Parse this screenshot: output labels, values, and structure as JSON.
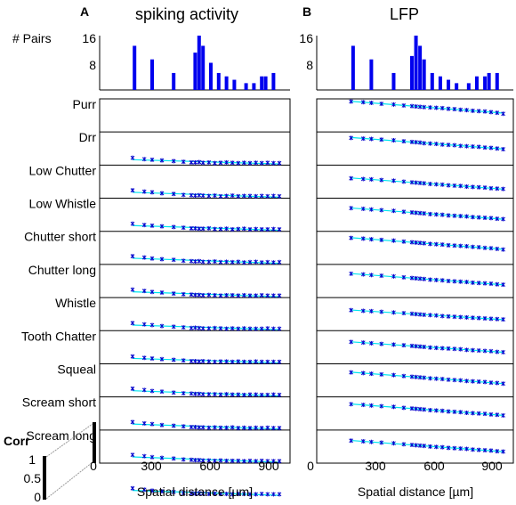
{
  "panels": [
    {
      "letter": "A",
      "title": "spiking activity",
      "xlabel": "Spatial distance [µm]"
    },
    {
      "letter": "B",
      "title": "LFP",
      "xlabel": "Spatial distance [µm]"
    }
  ],
  "pairs_label": "# Pairs",
  "corr_label": "Corr",
  "corr_ticks": [
    "1",
    "0.5",
    "0"
  ],
  "hist_ticks": [
    "16",
    "8"
  ],
  "x_tick_labels": [
    "0",
    "300",
    "600",
    "900"
  ],
  "colors": {
    "bars": "#0000ee",
    "markers": "#0000cc",
    "fit": "#00e5ee"
  },
  "chart_data": [
    {
      "type": "bar",
      "panel": "A",
      "title": "spiking activity",
      "xlabel": "Spatial distance [µm]",
      "ylabel": "# Pairs",
      "ylim": [
        0,
        16
      ],
      "x": [
        210,
        300,
        410,
        520,
        540,
        560,
        600,
        640,
        680,
        720,
        780,
        820,
        860,
        880,
        920
      ],
      "values": [
        13,
        9,
        5,
        11,
        16,
        13,
        8,
        5,
        4,
        3,
        2,
        2,
        4,
        4,
        5
      ]
    },
    {
      "type": "bar",
      "panel": "B",
      "title": "LFP",
      "xlabel": "Spatial distance [µm]",
      "ylabel": "# Pairs",
      "ylim": [
        0,
        16
      ],
      "x": [
        210,
        300,
        410,
        500,
        520,
        540,
        560,
        600,
        640,
        680,
        720,
        780,
        820,
        860,
        880,
        920
      ],
      "values": [
        13,
        9,
        5,
        10,
        16,
        13,
        9,
        5,
        4,
        3,
        2,
        2,
        4,
        4,
        5,
        5
      ]
    },
    {
      "type": "scatter",
      "panel": "A",
      "xlim": [
        0,
        1000
      ],
      "ylim_per_row": [
        0,
        1
      ],
      "x": [
        200,
        260,
        300,
        350,
        410,
        460,
        500,
        520,
        540,
        560,
        590,
        620,
        650,
        680,
        710,
        740,
        770,
        800,
        830,
        860,
        890,
        920,
        950
      ],
      "rows": [
        {
          "label": "Purr",
          "y": []
        },
        {
          "label": "Drr",
          "y": [
            0.22,
            0.18,
            0.16,
            0.14,
            0.12,
            0.1,
            0.08,
            0.08,
            0.09,
            0.07,
            0.08,
            0.06,
            0.07,
            0.08,
            0.07,
            0.06,
            0.07,
            0.06,
            0.07,
            0.06,
            0.07,
            0.06,
            0.06
          ]
        },
        {
          "label": "Low Chutter",
          "y": [
            0.24,
            0.2,
            0.18,
            0.15,
            0.13,
            0.1,
            0.09,
            0.08,
            0.09,
            0.08,
            0.07,
            0.08,
            0.06,
            0.07,
            0.08,
            0.06,
            0.07,
            0.07,
            0.06,
            0.07,
            0.06,
            0.07,
            0.06
          ]
        },
        {
          "label": "Low Whistle",
          "y": [
            0.23,
            0.19,
            0.17,
            0.15,
            0.13,
            0.11,
            0.09,
            0.09,
            0.08,
            0.08,
            0.09,
            0.07,
            0.07,
            0.08,
            0.06,
            0.07,
            0.08,
            0.06,
            0.07,
            0.06,
            0.06,
            0.07,
            0.06
          ]
        },
        {
          "label": "Chutter short",
          "y": [
            0.25,
            0.21,
            0.18,
            0.16,
            0.14,
            0.11,
            0.1,
            0.09,
            0.1,
            0.08,
            0.08,
            0.09,
            0.07,
            0.08,
            0.07,
            0.08,
            0.06,
            0.07,
            0.08,
            0.06,
            0.07,
            0.06,
            0.07
          ]
        },
        {
          "label": "Chutter long",
          "y": [
            0.24,
            0.2,
            0.17,
            0.15,
            0.12,
            0.1,
            0.09,
            0.08,
            0.08,
            0.07,
            0.08,
            0.07,
            0.06,
            0.07,
            0.07,
            0.06,
            0.07,
            0.06,
            0.06,
            0.07,
            0.06,
            0.06,
            0.06
          ]
        },
        {
          "label": "Whistle",
          "y": [
            0.23,
            0.19,
            0.17,
            0.14,
            0.12,
            0.1,
            0.08,
            0.09,
            0.08,
            0.07,
            0.07,
            0.08,
            0.07,
            0.06,
            0.07,
            0.06,
            0.07,
            0.06,
            0.06,
            0.06,
            0.07,
            0.06,
            0.06
          ]
        },
        {
          "label": "Tooth Chatter",
          "y": [
            0.22,
            0.18,
            0.16,
            0.14,
            0.12,
            0.1,
            0.08,
            0.08,
            0.07,
            0.08,
            0.07,
            0.06,
            0.07,
            0.07,
            0.06,
            0.07,
            0.06,
            0.06,
            0.07,
            0.06,
            0.06,
            0.06,
            0.06
          ]
        },
        {
          "label": "Squeal",
          "y": [
            0.25,
            0.21,
            0.18,
            0.16,
            0.13,
            0.11,
            0.1,
            0.09,
            0.09,
            0.08,
            0.08,
            0.08,
            0.07,
            0.08,
            0.07,
            0.07,
            0.06,
            0.07,
            0.07,
            0.06,
            0.06,
            0.07,
            0.06
          ]
        },
        {
          "label": "Scream short",
          "y": [
            0.24,
            0.2,
            0.18,
            0.15,
            0.13,
            0.11,
            0.09,
            0.09,
            0.08,
            0.08,
            0.07,
            0.08,
            0.07,
            0.07,
            0.08,
            0.06,
            0.07,
            0.06,
            0.07,
            0.06,
            0.07,
            0.06,
            0.06
          ]
        },
        {
          "label": "Scream long",
          "y": [
            0.25,
            0.21,
            0.18,
            0.16,
            0.14,
            0.11,
            0.1,
            0.09,
            0.09,
            0.08,
            0.08,
            0.07,
            0.08,
            0.07,
            0.07,
            0.07,
            0.06,
            0.07,
            0.06,
            0.07,
            0.06,
            0.06,
            0.06
          ]
        },
        {
          "label": "",
          "y": [
            0.24,
            0.2,
            0.17,
            0.15,
            0.13,
            0.1,
            0.09,
            0.08,
            0.09,
            0.08,
            0.07,
            0.08,
            0.07,
            0.07,
            0.06,
            0.07,
            0.07,
            0.06,
            0.06,
            0.07,
            0.06,
            0.06,
            0.06
          ]
        }
      ]
    },
    {
      "type": "scatter",
      "panel": "B",
      "xlim": [
        0,
        1000
      ],
      "ylim_per_row": [
        0,
        1
      ],
      "x": [
        200,
        260,
        300,
        350,
        410,
        460,
        500,
        520,
        540,
        560,
        590,
        620,
        650,
        680,
        710,
        740,
        770,
        800,
        830,
        860,
        890,
        920,
        950
      ],
      "rows": [
        {
          "y": [
            0.92,
            0.9,
            0.88,
            0.85,
            0.83,
            0.8,
            0.78,
            0.77,
            0.76,
            0.75,
            0.74,
            0.73,
            0.72,
            0.7,
            0.69,
            0.67,
            0.66,
            0.64,
            0.63,
            0.62,
            0.6,
            0.58,
            0.55
          ]
        },
        {
          "y": [
            0.82,
            0.8,
            0.79,
            0.77,
            0.75,
            0.72,
            0.7,
            0.69,
            0.68,
            0.66,
            0.65,
            0.64,
            0.62,
            0.61,
            0.6,
            0.58,
            0.57,
            0.56,
            0.55,
            0.53,
            0.52,
            0.5,
            0.48
          ]
        },
        {
          "y": [
            0.6,
            0.58,
            0.57,
            0.55,
            0.53,
            0.5,
            0.48,
            0.47,
            0.46,
            0.45,
            0.43,
            0.42,
            0.41,
            0.39,
            0.38,
            0.37,
            0.35,
            0.34,
            0.33,
            0.32,
            0.3,
            0.29,
            0.28
          ]
        },
        {
          "y": [
            0.7,
            0.68,
            0.66,
            0.64,
            0.62,
            0.59,
            0.57,
            0.56,
            0.55,
            0.54,
            0.52,
            0.51,
            0.5,
            0.48,
            0.47,
            0.46,
            0.45,
            0.43,
            0.42,
            0.41,
            0.4,
            0.38,
            0.37
          ]
        },
        {
          "y": [
            0.8,
            0.78,
            0.76,
            0.74,
            0.72,
            0.69,
            0.67,
            0.66,
            0.65,
            0.64,
            0.62,
            0.61,
            0.6,
            0.58,
            0.57,
            0.56,
            0.55,
            0.53,
            0.52,
            0.5,
            0.49,
            0.47,
            0.45
          ]
        },
        {
          "y": [
            0.72,
            0.7,
            0.68,
            0.66,
            0.64,
            0.61,
            0.59,
            0.58,
            0.57,
            0.56,
            0.54,
            0.53,
            0.52,
            0.5,
            0.49,
            0.48,
            0.47,
            0.45,
            0.44,
            0.43,
            0.42,
            0.4,
            0.39
          ]
        },
        {
          "y": [
            0.62,
            0.6,
            0.59,
            0.57,
            0.55,
            0.53,
            0.51,
            0.5,
            0.49,
            0.48,
            0.47,
            0.46,
            0.44,
            0.43,
            0.42,
            0.41,
            0.4,
            0.39,
            0.38,
            0.37,
            0.36,
            0.35,
            0.34
          ]
        },
        {
          "y": [
            0.66,
            0.64,
            0.62,
            0.6,
            0.58,
            0.56,
            0.54,
            0.53,
            0.52,
            0.51,
            0.49,
            0.48,
            0.47,
            0.46,
            0.45,
            0.44,
            0.42,
            0.41,
            0.4,
            0.39,
            0.38,
            0.36,
            0.35
          ]
        },
        {
          "y": [
            0.74,
            0.72,
            0.7,
            0.68,
            0.66,
            0.63,
            0.61,
            0.6,
            0.59,
            0.58,
            0.56,
            0.55,
            0.54,
            0.52,
            0.51,
            0.5,
            0.48,
            0.47,
            0.46,
            0.45,
            0.43,
            0.42,
            0.4
          ]
        },
        {
          "y": [
            0.78,
            0.76,
            0.74,
            0.72,
            0.7,
            0.67,
            0.65,
            0.64,
            0.63,
            0.62,
            0.6,
            0.59,
            0.58,
            0.56,
            0.55,
            0.54,
            0.52,
            0.51,
            0.5,
            0.49,
            0.47,
            0.46,
            0.44
          ]
        },
        {
          "y": [
            0.68,
            0.66,
            0.64,
            0.62,
            0.6,
            0.57,
            0.55,
            0.54,
            0.53,
            0.52,
            0.5,
            0.49,
            0.48,
            0.46,
            0.45,
            0.44,
            0.43,
            0.41,
            0.4,
            0.39,
            0.38,
            0.36,
            0.35
          ]
        }
      ]
    }
  ]
}
